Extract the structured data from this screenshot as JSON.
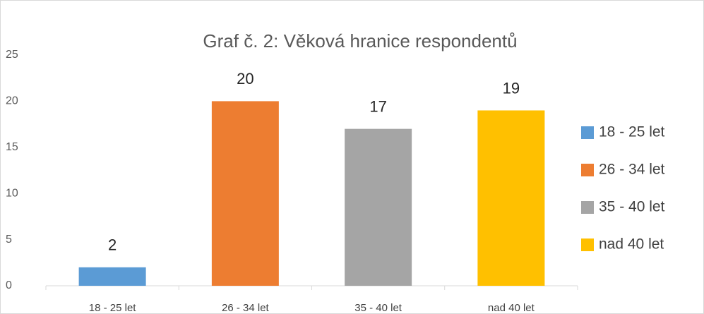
{
  "chart_data": {
    "type": "bar",
    "title": "Graf č. 2: Věková hranice respondentů",
    "categories": [
      "18 - 25 let",
      "26 - 34 let",
      "35 - 40 let",
      "nad 40 let"
    ],
    "values": [
      2,
      20,
      17,
      19
    ],
    "colors": [
      "#5b9bd5",
      "#ed7d31",
      "#a5a5a5",
      "#ffc000"
    ],
    "ylim": [
      0,
      25
    ],
    "yticks": [
      0,
      5,
      10,
      15,
      20,
      25
    ],
    "grid": false,
    "legend": "right"
  }
}
